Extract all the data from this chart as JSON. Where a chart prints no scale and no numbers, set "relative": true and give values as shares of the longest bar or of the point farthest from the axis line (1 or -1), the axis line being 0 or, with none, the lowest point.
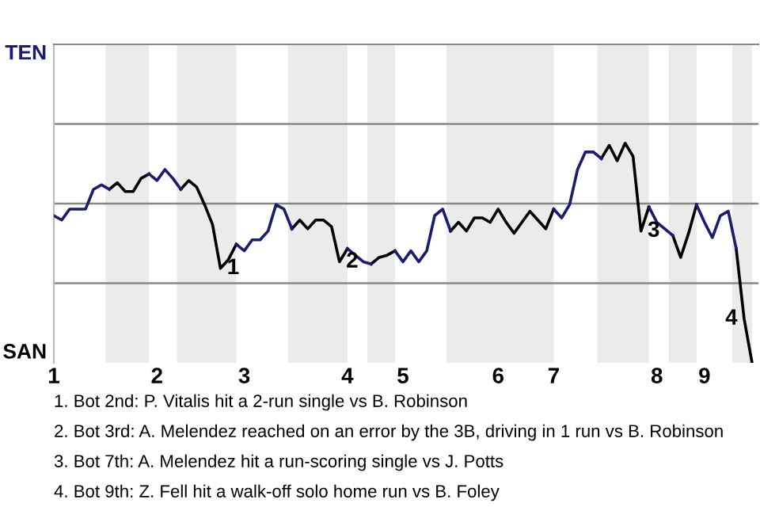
{
  "chart_data": {
    "type": "line",
    "relative": true,
    "categories": [
      "1",
      null,
      null,
      null,
      null,
      null,
      null,
      null,
      null,
      null,
      null,
      null,
      null,
      "2",
      null,
      null,
      null,
      null,
      null,
      null,
      null,
      null,
      null,
      null,
      "3",
      null,
      null,
      null,
      null,
      null,
      null,
      null,
      null,
      null,
      null,
      null,
      null,
      "4",
      null,
      null,
      null,
      null,
      null,
      null,
      "5",
      null,
      null,
      null,
      null,
      null,
      null,
      null,
      null,
      null,
      null,
      null,
      "6",
      null,
      null,
      null,
      null,
      null,
      null,
      "7",
      null,
      null,
      null,
      null,
      null,
      null,
      null,
      null,
      null,
      null,
      null,
      null,
      "8",
      null,
      null,
      null,
      null,
      null,
      "9",
      null,
      null,
      null,
      null,
      null,
      null
    ],
    "ylim": [
      0,
      1.45
    ],
    "marker": "none",
    "line_style": "solid",
    "ref_lines": [
      {
        "axis": "y",
        "value": 0.3625,
        "color": "#888888"
      },
      {
        "axis": "y",
        "value": 0.725,
        "color": "#888888"
      },
      {
        "axis": "y",
        "value": 1.0875,
        "color": "#888888"
      }
    ],
    "series": [
      {
        "name": "TEN",
        "color": "#1c1c6e",
        "values": [
          0.67,
          0.65,
          0.7,
          0.7,
          0.7,
          0.79,
          0.81,
          0.79,
          null,
          null,
          null,
          null,
          0.86,
          0.83,
          0.88,
          0.84,
          0.79,
          null,
          null,
          null,
          null,
          null,
          null,
          0.54,
          0.51,
          0.56,
          0.56,
          0.6,
          0.72,
          0.7,
          0.61,
          null,
          null,
          null,
          null,
          null,
          null,
          0.52,
          0.49,
          0.46,
          0.45,
          null,
          null,
          0.51,
          0.46,
          0.51,
          0.46,
          0.51,
          0.67,
          0.7,
          0.6,
          null,
          null,
          null,
          null,
          null,
          null,
          null,
          null,
          null,
          null,
          null,
          null,
          0.7,
          0.66,
          0.72,
          0.88,
          0.96,
          0.96,
          0.93,
          null,
          null,
          null,
          null,
          null,
          0.71,
          0.64,
          0.61,
          0.58,
          null,
          null,
          0.72,
          0.64,
          0.57,
          0.67,
          0.69,
          0.52,
          null,
          null
        ]
      },
      {
        "name": "SAN",
        "color": "#000000",
        "values": [
          null,
          null,
          null,
          null,
          null,
          null,
          null,
          0.79,
          0.82,
          0.78,
          0.78,
          0.84,
          0.86,
          null,
          null,
          null,
          0.79,
          0.83,
          0.8,
          0.72,
          0.63,
          0.43,
          0.47,
          0.54,
          null,
          null,
          null,
          null,
          null,
          null,
          0.61,
          0.65,
          0.61,
          0.65,
          0.65,
          0.62,
          0.46,
          0.52,
          null,
          null,
          0.45,
          0.48,
          0.49,
          0.51,
          null,
          null,
          null,
          null,
          null,
          null,
          0.6,
          0.64,
          0.6,
          0.66,
          0.66,
          0.64,
          0.7,
          0.64,
          0.59,
          0.64,
          0.69,
          0.65,
          0.61,
          0.7,
          null,
          null,
          null,
          null,
          null,
          0.93,
          0.99,
          0.92,
          1,
          0.94,
          0.6,
          0.71,
          null,
          null,
          0.58,
          0.48,
          0.59,
          0.72,
          null,
          null,
          null,
          null,
          0.52,
          0.2,
          0
        ]
      }
    ],
    "annotations": [
      "1",
      "2",
      "3",
      "4",
      "1. Bot 2nd: P. Vitalis hit a 2-run single vs B. Robinson",
      "2. Bot 3rd: A. Melendez reached on an error by the 3B, driving in 1 run vs B. Robinson",
      "3. Bot 7th: A. Melendez hit a run-scoring single vs J. Potts",
      "4. Bot 9th: Z. Fell hit a walk-off solo home run vs B. Foley"
    ]
  }
}
